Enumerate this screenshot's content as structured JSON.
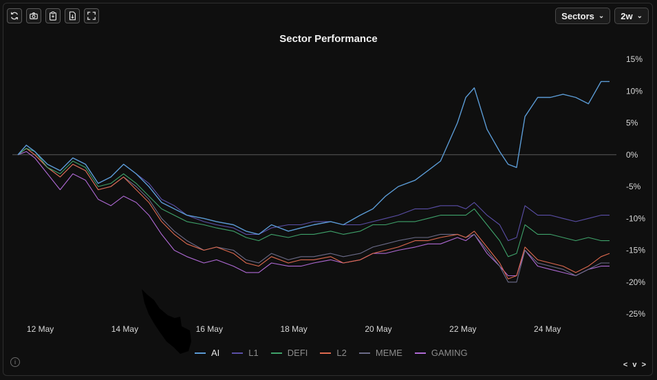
{
  "toolbar": {
    "icons": [
      "refresh-icon",
      "camera-icon",
      "clipboard-icon",
      "download-file-icon",
      "fullscreen-icon"
    ]
  },
  "controls": {
    "sector_select": "Sectors",
    "range_select": "2w"
  },
  "nav_label": "< v >",
  "chart_data": {
    "type": "line",
    "title": "Sector Performance",
    "x_tick_labels": [
      "12 May",
      "14 May",
      "16 May",
      "18 May",
      "20 May",
      "22 May",
      "24 May"
    ],
    "y_tick_labels": [
      "15%",
      "10%",
      "5%",
      "0%",
      "-5%",
      "-10%",
      "-15%",
      "-20%",
      "-25%"
    ],
    "ylim": [
      -25,
      15
    ],
    "y_unit": "%",
    "grid": false,
    "zero_line": true,
    "legend_position": "bottom",
    "x": [
      11.6,
      11.8,
      12.0,
      12.3,
      12.6,
      12.9,
      13.2,
      13.5,
      13.8,
      14.1,
      14.4,
      14.7,
      15.0,
      15.3,
      15.6,
      16.0,
      16.3,
      16.7,
      17.0,
      17.3,
      17.6,
      18.0,
      18.3,
      18.6,
      19.0,
      19.3,
      19.7,
      20.0,
      20.3,
      20.6,
      21.0,
      21.3,
      21.6,
      22.0,
      22.2,
      22.4,
      22.7,
      23.0,
      23.2,
      23.4,
      23.6,
      23.9,
      24.2,
      24.5,
      24.8,
      25.1,
      25.4,
      25.6
    ],
    "series": [
      {
        "name": "AI",
        "color": "#5b9bd5",
        "values": [
          0,
          1.5,
          0.5,
          -1.5,
          -2.5,
          -0.5,
          -1.5,
          -4.5,
          -3.5,
          -1.5,
          -3.0,
          -5.0,
          -7.5,
          -8.5,
          -9.5,
          -10.0,
          -10.5,
          -11.0,
          -12.0,
          -12.5,
          -11.0,
          -12.0,
          -11.5,
          -11.0,
          -10.5,
          -11.0,
          -9.5,
          -8.5,
          -6.5,
          -5.0,
          -4.0,
          -2.5,
          -1.0,
          5.0,
          9.0,
          10.5,
          4.0,
          0.5,
          -1.5,
          -2.0,
          6.0,
          9.0,
          9.0,
          9.5,
          9.0,
          8.0,
          11.5,
          11.5
        ]
      },
      {
        "name": "L1",
        "color": "#5b4fa8",
        "values": [
          0,
          1.5,
          0.5,
          -1.5,
          -2.5,
          -0.5,
          -1.5,
          -4.5,
          -3.5,
          -1.5,
          -3.0,
          -4.5,
          -7.0,
          -8.0,
          -9.5,
          -10.5,
          -11.0,
          -11.5,
          -12.5,
          -12.5,
          -11.5,
          -11.0,
          -11.0,
          -10.5,
          -10.5,
          -11.0,
          -11.0,
          -10.5,
          -10.0,
          -9.5,
          -8.5,
          -8.5,
          -8.0,
          -8.0,
          -8.5,
          -7.5,
          -9.5,
          -11.0,
          -13.5,
          -13.0,
          -8.0,
          -9.5,
          -9.5,
          -10.0,
          -10.5,
          -10.0,
          -9.5,
          -9.5
        ]
      },
      {
        "name": "DEFI",
        "color": "#3fa36b",
        "values": [
          0,
          1.0,
          0.5,
          -2.0,
          -3.0,
          -1.0,
          -2.0,
          -5.0,
          -4.5,
          -3.0,
          -4.5,
          -6.5,
          -8.5,
          -9.5,
          -10.5,
          -11.0,
          -11.5,
          -12.0,
          -13.0,
          -13.5,
          -12.5,
          -13.0,
          -12.5,
          -12.5,
          -12.0,
          -12.5,
          -12.0,
          -11.0,
          -11.0,
          -10.5,
          -10.5,
          -10.0,
          -9.5,
          -9.5,
          -9.5,
          -8.5,
          -11.0,
          -13.5,
          -16.0,
          -15.5,
          -11.0,
          -12.5,
          -12.5,
          -13.0,
          -13.5,
          -13.0,
          -13.5,
          -13.5
        ]
      },
      {
        "name": "L2",
        "color": "#e06a4f",
        "values": [
          0,
          1.0,
          0.0,
          -2.0,
          -3.5,
          -1.5,
          -2.5,
          -5.5,
          -5.0,
          -3.5,
          -5.5,
          -7.5,
          -10.5,
          -12.5,
          -14.0,
          -15.0,
          -14.5,
          -15.5,
          -17.0,
          -17.5,
          -16.0,
          -17.0,
          -16.5,
          -16.5,
          -16.0,
          -17.0,
          -16.5,
          -15.5,
          -15.0,
          -14.5,
          -13.5,
          -13.5,
          -13.0,
          -12.5,
          -13.0,
          -12.0,
          -14.5,
          -17.0,
          -19.5,
          -19.0,
          -14.5,
          -16.5,
          -17.0,
          -17.5,
          -18.5,
          -17.5,
          -16.0,
          -15.5
        ]
      },
      {
        "name": "MEME",
        "color": "#6c6c8a",
        "values": [
          0,
          1.0,
          0.0,
          -2.0,
          -3.5,
          -1.5,
          -2.5,
          -5.5,
          -5.0,
          -3.5,
          -5.0,
          -7.0,
          -10.0,
          -12.0,
          -13.5,
          -15.0,
          -14.5,
          -15.0,
          -16.5,
          -17.0,
          -15.5,
          -16.5,
          -16.0,
          -16.0,
          -15.5,
          -16.0,
          -15.5,
          -14.5,
          -14.0,
          -13.5,
          -13.0,
          -13.0,
          -12.5,
          -12.5,
          -13.0,
          -12.5,
          -15.0,
          -17.5,
          -20.0,
          -20.0,
          -15.0,
          -17.0,
          -17.5,
          -18.0,
          -19.0,
          -18.0,
          -17.0,
          -17.0
        ]
      },
      {
        "name": "GAMING",
        "color": "#b06ad6",
        "values": [
          0,
          0.5,
          -0.5,
          -3.0,
          -5.5,
          -3.0,
          -4.0,
          -7.0,
          -8.0,
          -6.5,
          -7.5,
          -9.5,
          -12.5,
          -15.0,
          -16.0,
          -17.0,
          -16.5,
          -17.5,
          -18.5,
          -18.5,
          -17.0,
          -17.5,
          -17.5,
          -17.0,
          -16.5,
          -17.0,
          -16.5,
          -15.5,
          -15.5,
          -15.0,
          -14.5,
          -14.0,
          -14.0,
          -13.0,
          -13.5,
          -12.5,
          -15.5,
          -17.5,
          -19.0,
          -19.0,
          -15.0,
          -17.5,
          -18.0,
          -18.5,
          -19.0,
          -18.0,
          -17.5,
          -17.5
        ]
      }
    ],
    "active_series": "AI"
  }
}
